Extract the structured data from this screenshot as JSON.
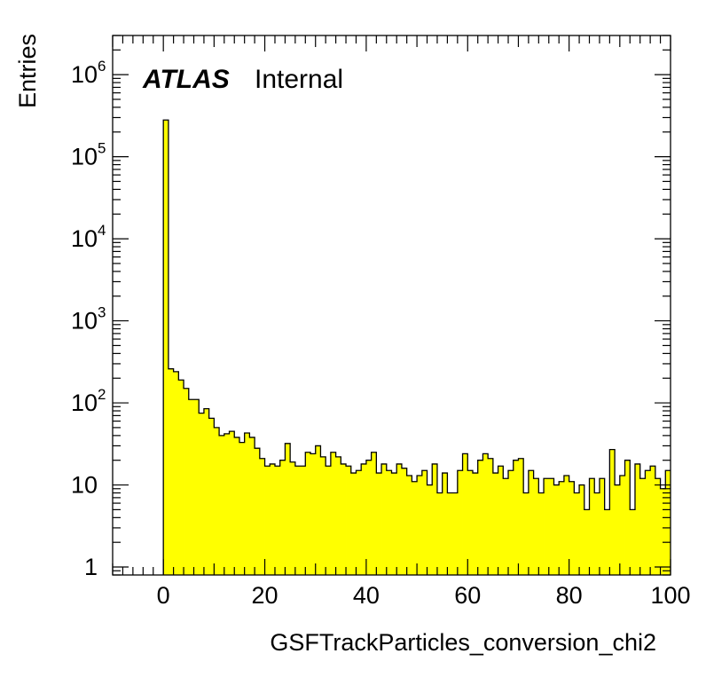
{
  "chart_data": {
    "type": "histogram",
    "xlabel": "GSFTrackParticles_conversion_chi2",
    "ylabel": "Entries",
    "annotation": {
      "bold": "ATLAS",
      "plain": "Internal"
    },
    "xlim": [
      -10,
      100
    ],
    "ylim": [
      0.8,
      3000000
    ],
    "yscale": "log",
    "x_ticks": [
      0,
      20,
      40,
      60,
      80,
      100
    ],
    "x_tick_labels": [
      "0",
      "20",
      "40",
      "60",
      "80",
      "100"
    ],
    "y_ticks": [
      1,
      10,
      100,
      1000,
      10000,
      100000,
      1000000
    ],
    "y_tick_labels": [
      {
        "base": "1",
        "exp": ""
      },
      {
        "base": "10",
        "exp": ""
      },
      {
        "base": "10",
        "exp": "2"
      },
      {
        "base": "10",
        "exp": "3"
      },
      {
        "base": "10",
        "exp": "4"
      },
      {
        "base": "10",
        "exp": "5"
      },
      {
        "base": "10",
        "exp": "6"
      }
    ],
    "bin_start": 0,
    "bin_width": 1,
    "fill_color": "#ffff00",
    "line_color": "#000000",
    "values": [
      280000,
      260,
      240,
      190,
      150,
      110,
      110,
      75,
      85,
      65,
      50,
      40,
      42,
      45,
      38,
      33,
      43,
      38,
      28,
      21,
      17,
      18,
      17,
      20,
      32,
      19,
      17,
      17,
      25,
      24,
      30,
      22,
      17,
      25,
      22,
      18,
      17,
      14,
      15,
      18,
      20,
      25,
      14,
      18,
      15,
      14,
      18,
      16,
      13,
      11,
      13,
      15,
      10,
      18,
      8,
      14,
      8,
      8,
      15,
      24,
      15,
      14,
      20,
      24,
      21,
      14,
      17,
      12,
      15,
      20,
      21,
      8,
      15,
      12,
      8,
      12,
      12,
      10,
      11,
      13,
      11,
      8,
      10,
      5,
      12,
      8,
      12,
      5,
      27,
      10,
      13,
      20,
      5,
      18,
      12,
      15,
      17,
      12,
      9,
      15
    ]
  }
}
